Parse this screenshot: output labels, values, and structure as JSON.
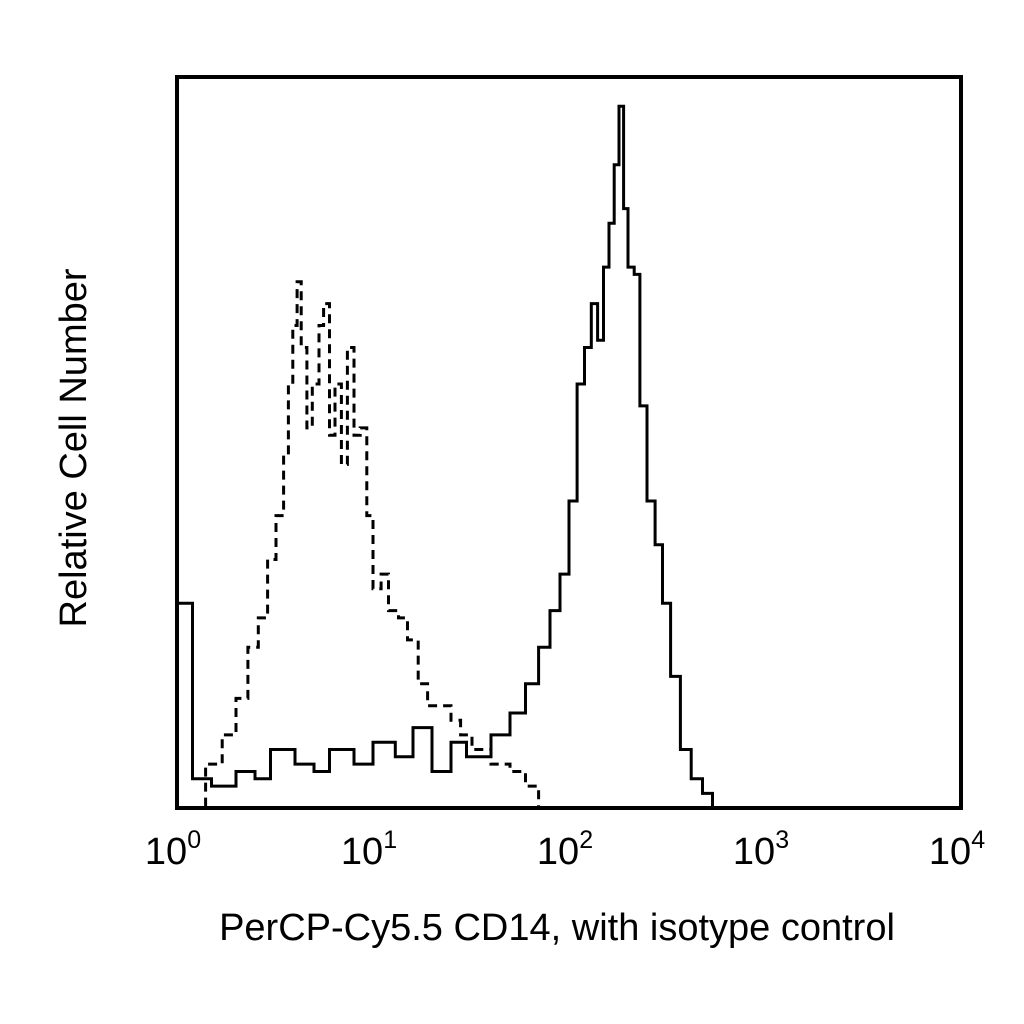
{
  "chart_data": {
    "type": "line",
    "subtype": "flow-cytometry-histogram",
    "xlabel": "PerCP-Cy5.5 CD14, with isotype control",
    "ylabel": "Relative Cell Number",
    "xscale": "log",
    "xlim": [
      1,
      10000
    ],
    "ylim": [
      0,
      100
    ],
    "x_ticks": [
      {
        "base": "10",
        "exp": "0",
        "value": 1
      },
      {
        "base": "10",
        "exp": "1",
        "value": 10
      },
      {
        "base": "10",
        "exp": "2",
        "value": 100
      },
      {
        "base": "10",
        "exp": "3",
        "value": 1000
      },
      {
        "base": "10",
        "exp": "4",
        "value": 10000
      }
    ],
    "grid": false,
    "legend": null,
    "series": [
      {
        "style": "dashed",
        "color": "#000000",
        "x": [
          1.0,
          1.4,
          1.7,
          2.0,
          2.3,
          2.6,
          2.9,
          3.2,
          3.5,
          3.7,
          3.9,
          4.1,
          4.3,
          4.6,
          4.9,
          5.3,
          5.6,
          6.0,
          6.4,
          6.9,
          7.4,
          8.0,
          8.6,
          9.3,
          10.0,
          11.0,
          12.0,
          13.5,
          15.0,
          17.0,
          19.0,
          22.0,
          25.0,
          28.0,
          32.0,
          40.0,
          50.0,
          60.0,
          70.0
        ],
        "y": [
          0,
          6,
          10,
          15,
          22,
          26,
          34,
          40,
          48,
          58,
          66,
          72,
          63,
          52,
          58,
          66,
          69,
          51,
          58,
          47,
          63,
          51,
          52,
          40,
          30,
          32,
          27,
          26,
          23,
          17,
          14,
          14,
          12,
          10,
          8,
          6,
          5,
          3,
          0
        ]
      },
      {
        "style": "solid",
        "color": "#000000",
        "x": [
          1.0,
          1.2,
          1.5,
          2.0,
          2.5,
          3.0,
          4.0,
          5.0,
          6.0,
          8.0,
          10.0,
          13.0,
          16.0,
          20.0,
          25.0,
          30.0,
          40.0,
          50.0,
          60.0,
          70.0,
          80.0,
          90.0,
          100.0,
          110.0,
          120.0,
          130.0,
          140.0,
          150.0,
          160.0,
          170.0,
          180.0,
          190.0,
          200.0,
          215.0,
          230.0,
          250.0,
          275.0,
          300.0,
          330.0,
          370.0,
          420.0,
          480.0,
          540.0
        ],
        "y": [
          28,
          4,
          3,
          5,
          4,
          8,
          6,
          5,
          8,
          6,
          9,
          7,
          11,
          5,
          9,
          7,
          10,
          13,
          17,
          22,
          27,
          32,
          42,
          58,
          63,
          69,
          64,
          74,
          80,
          88,
          96,
          82,
          74,
          73,
          55,
          42,
          36,
          28,
          18,
          8,
          4,
          2,
          0
        ]
      }
    ]
  }
}
